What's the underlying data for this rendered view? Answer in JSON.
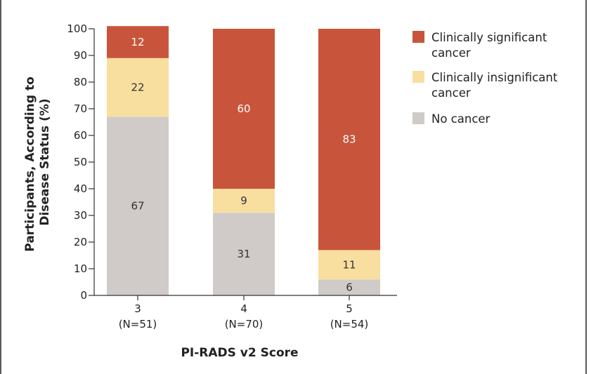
{
  "chart_data": {
    "type": "bar",
    "stacked": true,
    "categories": [
      "3",
      "4",
      "5"
    ],
    "category_sublabels": [
      "(N=51)",
      "(N=70)",
      "(N=54)"
    ],
    "series": [
      {
        "name": "No cancer",
        "values": [
          67,
          31,
          6
        ],
        "color": "#d0cbc8",
        "label_color": "#333333"
      },
      {
        "name": "Clinically insignificant cancer",
        "values": [
          22,
          9,
          11
        ],
        "color": "#f8dfa0",
        "label_color": "#333333"
      },
      {
        "name": "Clinically significant cancer",
        "values": [
          12,
          60,
          83
        ],
        "color": "#c8553b",
        "label_color": "#ffffff"
      }
    ],
    "legend_lines": [
      [
        "Clinically significant",
        "cancer"
      ],
      [
        "Clinically insignificant",
        "cancer"
      ],
      [
        "No cancer"
      ]
    ],
    "legend_order": [
      2,
      1,
      0
    ],
    "xlabel": "PI-RADS v2 Score",
    "ylabel_lines": [
      "Participants, According to",
      "Disease Status (%)"
    ],
    "ylim": [
      0,
      100
    ],
    "yticks": [
      0,
      10,
      20,
      30,
      40,
      50,
      60,
      70,
      80,
      90,
      100
    ],
    "grid": false,
    "legend_position": "top-right"
  }
}
